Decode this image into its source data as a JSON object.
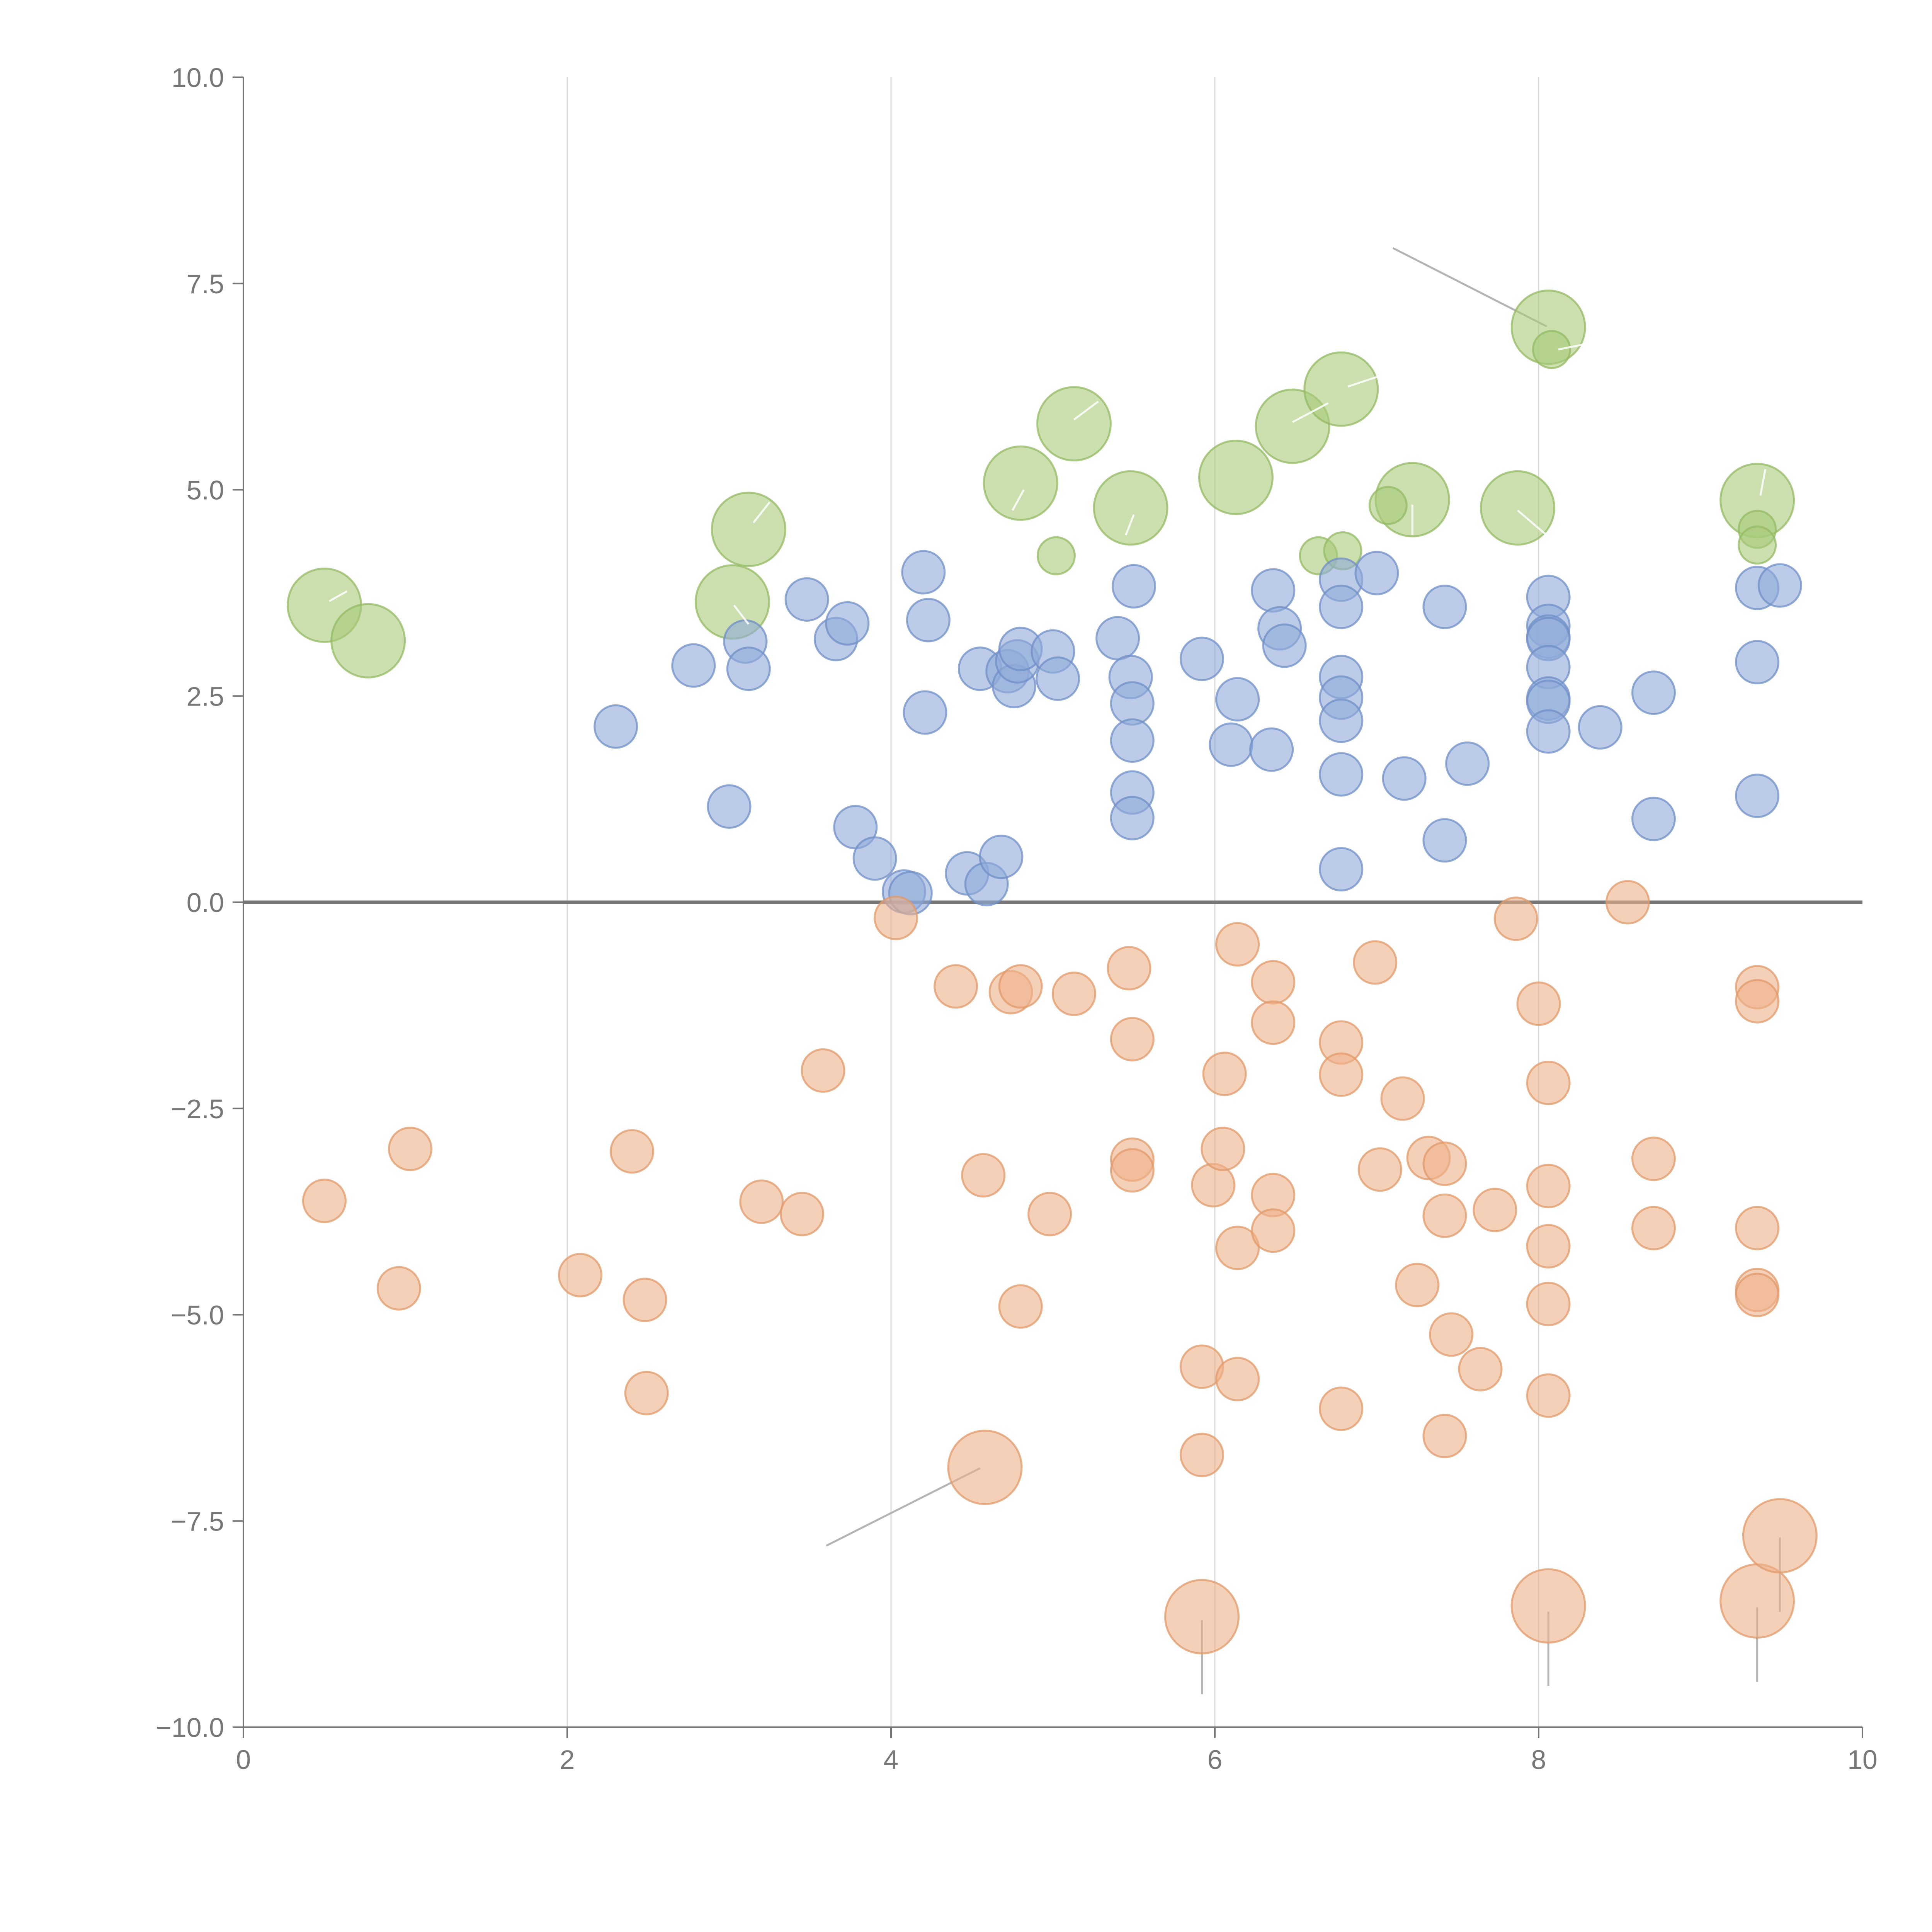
{
  "chart_data": {
    "type": "scatter",
    "title": "",
    "xlabel": "",
    "ylabel": "",
    "xlim": [
      0,
      10
    ],
    "ylim": [
      -10,
      10
    ],
    "grid": "vertical",
    "x_ticks": [
      "0",
      "2",
      "4",
      "6",
      "8",
      "10"
    ],
    "y_ticks": [
      "10.0",
      "7.5",
      "5.0",
      "2.5",
      "0.0",
      "−2.5",
      "−5.0",
      "−7.5",
      "−10.0"
    ],
    "series": [
      {
        "name": "green",
        "color": "#a9c97a",
        "stroke": "#93b962",
        "points": [
          {
            "x": 0.5,
            "y": 3.6,
            "size": "large"
          },
          {
            "x": 0.77,
            "y": 3.17,
            "size": "large"
          },
          {
            "x": 3.02,
            "y": 3.64,
            "size": "large"
          },
          {
            "x": 3.12,
            "y": 4.52,
            "size": "large"
          },
          {
            "x": 4.8,
            "y": 5.08,
            "size": "large"
          },
          {
            "x": 5.13,
            "y": 5.8,
            "size": "large"
          },
          {
            "x": 5.48,
            "y": 4.78,
            "size": "large"
          },
          {
            "x": 6.13,
            "y": 5.15,
            "size": "large"
          },
          {
            "x": 6.48,
            "y": 5.77,
            "size": "large"
          },
          {
            "x": 6.78,
            "y": 6.22,
            "size": "large"
          },
          {
            "x": 7.22,
            "y": 4.88,
            "size": "large"
          },
          {
            "x": 7.87,
            "y": 4.78,
            "size": "large"
          },
          {
            "x": 8.06,
            "y": 6.97,
            "size": "large"
          },
          {
            "x": 9.35,
            "y": 4.87,
            "size": "large"
          },
          {
            "x": 5.02,
            "y": 4.2,
            "size": "small"
          },
          {
            "x": 6.64,
            "y": 4.2,
            "size": "small"
          },
          {
            "x": 6.79,
            "y": 4.26,
            "size": "small"
          },
          {
            "x": 7.07,
            "y": 4.81,
            "size": "small"
          },
          {
            "x": 8.08,
            "y": 6.7,
            "size": "small"
          },
          {
            "x": 9.35,
            "y": 4.52,
            "size": "small"
          },
          {
            "x": 9.35,
            "y": 4.33,
            "size": "small"
          }
        ]
      },
      {
        "name": "blue",
        "color": "#8faad8",
        "stroke": "#6f8fc7",
        "points": [
          {
            "x": 2.3,
            "y": 2.13,
            "size": "medium"
          },
          {
            "x": 2.78,
            "y": 2.87,
            "size": "medium"
          },
          {
            "x": 3.0,
            "y": 1.16,
            "size": "medium"
          },
          {
            "x": 3.1,
            "y": 3.16,
            "size": "medium"
          },
          {
            "x": 3.12,
            "y": 2.83,
            "size": "medium"
          },
          {
            "x": 3.48,
            "y": 3.67,
            "size": "medium"
          },
          {
            "x": 3.66,
            "y": 3.19,
            "size": "medium"
          },
          {
            "x": 3.73,
            "y": 3.38,
            "size": "medium"
          },
          {
            "x": 3.78,
            "y": 0.91,
            "size": "medium"
          },
          {
            "x": 3.9,
            "y": 0.53,
            "size": "medium"
          },
          {
            "x": 4.08,
            "y": 0.13,
            "size": "medium"
          },
          {
            "x": 4.12,
            "y": 0.11,
            "size": "medium"
          },
          {
            "x": 4.2,
            "y": 4.0,
            "size": "medium"
          },
          {
            "x": 4.21,
            "y": 2.3,
            "size": "medium"
          },
          {
            "x": 4.23,
            "y": 3.42,
            "size": "medium"
          },
          {
            "x": 4.47,
            "y": 0.35,
            "size": "medium"
          },
          {
            "x": 4.55,
            "y": 2.83,
            "size": "medium"
          },
          {
            "x": 4.59,
            "y": 0.22,
            "size": "medium"
          },
          {
            "x": 4.68,
            "y": 0.55,
            "size": "medium"
          },
          {
            "x": 4.72,
            "y": 2.8,
            "size": "medium"
          },
          {
            "x": 4.76,
            "y": 2.62,
            "size": "medium"
          },
          {
            "x": 4.78,
            "y": 2.92,
            "size": "medium"
          },
          {
            "x": 4.8,
            "y": 3.07,
            "size": "medium"
          },
          {
            "x": 5.0,
            "y": 3.04,
            "size": "medium"
          },
          {
            "x": 5.03,
            "y": 2.71,
            "size": "medium"
          },
          {
            "x": 5.4,
            "y": 3.2,
            "size": "medium"
          },
          {
            "x": 5.48,
            "y": 2.73,
            "size": "medium"
          },
          {
            "x": 5.49,
            "y": 2.41,
            "size": "medium"
          },
          {
            "x": 5.49,
            "y": 1.96,
            "size": "medium"
          },
          {
            "x": 5.49,
            "y": 1.33,
            "size": "medium"
          },
          {
            "x": 5.49,
            "y": 1.02,
            "size": "medium"
          },
          {
            "x": 5.5,
            "y": 3.83,
            "size": "medium"
          },
          {
            "x": 5.92,
            "y": 2.95,
            "size": "medium"
          },
          {
            "x": 6.1,
            "y": 1.91,
            "size": "medium"
          },
          {
            "x": 6.14,
            "y": 2.46,
            "size": "medium"
          },
          {
            "x": 6.35,
            "y": 1.85,
            "size": "medium"
          },
          {
            "x": 6.36,
            "y": 3.78,
            "size": "medium"
          },
          {
            "x": 6.4,
            "y": 3.32,
            "size": "medium"
          },
          {
            "x": 6.43,
            "y": 3.11,
            "size": "medium"
          },
          {
            "x": 6.78,
            "y": 3.91,
            "size": "medium"
          },
          {
            "x": 6.78,
            "y": 3.58,
            "size": "medium"
          },
          {
            "x": 6.78,
            "y": 2.73,
            "size": "medium"
          },
          {
            "x": 6.78,
            "y": 2.48,
            "size": "medium"
          },
          {
            "x": 6.78,
            "y": 2.2,
            "size": "medium"
          },
          {
            "x": 6.78,
            "y": 1.55,
            "size": "medium"
          },
          {
            "x": 6.78,
            "y": 0.4,
            "size": "medium"
          },
          {
            "x": 7.0,
            "y": 3.99,
            "size": "medium"
          },
          {
            "x": 7.17,
            "y": 1.5,
            "size": "medium"
          },
          {
            "x": 7.42,
            "y": 3.58,
            "size": "medium"
          },
          {
            "x": 7.42,
            "y": 0.75,
            "size": "medium"
          },
          {
            "x": 7.56,
            "y": 1.68,
            "size": "medium"
          },
          {
            "x": 8.06,
            "y": 3.7,
            "size": "medium"
          },
          {
            "x": 8.06,
            "y": 3.35,
            "size": "medium"
          },
          {
            "x": 8.06,
            "y": 3.22,
            "size": "medium"
          },
          {
            "x": 8.06,
            "y": 3.19,
            "size": "medium"
          },
          {
            "x": 8.06,
            "y": 2.85,
            "size": "medium"
          },
          {
            "x": 8.06,
            "y": 2.47,
            "size": "medium"
          },
          {
            "x": 8.06,
            "y": 2.43,
            "size": "medium"
          },
          {
            "x": 8.06,
            "y": 2.07,
            "size": "medium"
          },
          {
            "x": 8.38,
            "y": 2.12,
            "size": "medium"
          },
          {
            "x": 8.71,
            "y": 2.54,
            "size": "medium"
          },
          {
            "x": 8.71,
            "y": 1.01,
            "size": "medium"
          },
          {
            "x": 9.35,
            "y": 3.81,
            "size": "medium"
          },
          {
            "x": 9.35,
            "y": 2.91,
            "size": "medium"
          },
          {
            "x": 9.35,
            "y": 1.29,
            "size": "medium"
          },
          {
            "x": 9.49,
            "y": 3.84,
            "size": "medium"
          }
        ]
      },
      {
        "name": "orange",
        "color": "#eeb088",
        "stroke": "#e09a6a",
        "points": [
          {
            "x": 0.5,
            "y": -3.62,
            "size": "medium"
          },
          {
            "x": 0.96,
            "y": -4.68,
            "size": "medium"
          },
          {
            "x": 1.03,
            "y": -2.99,
            "size": "medium"
          },
          {
            "x": 2.08,
            "y": -4.52,
            "size": "medium"
          },
          {
            "x": 2.4,
            "y": -3.02,
            "size": "medium"
          },
          {
            "x": 2.48,
            "y": -4.82,
            "size": "medium"
          },
          {
            "x": 2.49,
            "y": -5.95,
            "size": "medium"
          },
          {
            "x": 3.2,
            "y": -3.63,
            "size": "medium"
          },
          {
            "x": 3.45,
            "y": -3.78,
            "size": "medium"
          },
          {
            "x": 3.58,
            "y": -2.04,
            "size": "medium"
          },
          {
            "x": 4.03,
            "y": -0.19,
            "size": "medium"
          },
          {
            "x": 4.4,
            "y": -1.02,
            "size": "medium"
          },
          {
            "x": 4.57,
            "y": -3.31,
            "size": "medium"
          },
          {
            "x": 4.58,
            "y": -6.85,
            "size": "large"
          },
          {
            "x": 4.74,
            "y": -1.09,
            "size": "medium"
          },
          {
            "x": 4.8,
            "y": -1.02,
            "size": "medium"
          },
          {
            "x": 4.8,
            "y": -4.9,
            "size": "medium"
          },
          {
            "x": 4.98,
            "y": -3.78,
            "size": "medium"
          },
          {
            "x": 5.13,
            "y": -1.11,
            "size": "medium"
          },
          {
            "x": 5.47,
            "y": -0.8,
            "size": "medium"
          },
          {
            "x": 5.49,
            "y": -1.66,
            "size": "medium"
          },
          {
            "x": 5.49,
            "y": -3.12,
            "size": "medium"
          },
          {
            "x": 5.49,
            "y": -3.25,
            "size": "medium"
          },
          {
            "x": 5.92,
            "y": -5.63,
            "size": "medium"
          },
          {
            "x": 5.92,
            "y": -6.7,
            "size": "medium"
          },
          {
            "x": 5.92,
            "y": -8.66,
            "size": "large"
          },
          {
            "x": 5.99,
            "y": -3.43,
            "size": "medium"
          },
          {
            "x": 6.05,
            "y": -2.99,
            "size": "medium"
          },
          {
            "x": 6.06,
            "y": -2.08,
            "size": "medium"
          },
          {
            "x": 6.14,
            "y": -0.51,
            "size": "medium"
          },
          {
            "x": 6.14,
            "y": -4.19,
            "size": "medium"
          },
          {
            "x": 6.14,
            "y": -5.78,
            "size": "medium"
          },
          {
            "x": 6.36,
            "y": -0.97,
            "size": "medium"
          },
          {
            "x": 6.36,
            "y": -1.46,
            "size": "medium"
          },
          {
            "x": 6.36,
            "y": -3.55,
            "size": "medium"
          },
          {
            "x": 6.36,
            "y": -3.98,
            "size": "medium"
          },
          {
            "x": 6.78,
            "y": -1.7,
            "size": "medium"
          },
          {
            "x": 6.78,
            "y": -2.09,
            "size": "medium"
          },
          {
            "x": 6.78,
            "y": -6.14,
            "size": "medium"
          },
          {
            "x": 6.99,
            "y": -0.73,
            "size": "medium"
          },
          {
            "x": 7.02,
            "y": -3.24,
            "size": "medium"
          },
          {
            "x": 7.16,
            "y": -2.38,
            "size": "medium"
          },
          {
            "x": 7.25,
            "y": -4.64,
            "size": "medium"
          },
          {
            "x": 7.32,
            "y": -3.1,
            "size": "medium"
          },
          {
            "x": 7.42,
            "y": -3.17,
            "size": "medium"
          },
          {
            "x": 7.42,
            "y": -3.8,
            "size": "medium"
          },
          {
            "x": 7.42,
            "y": -6.47,
            "size": "medium"
          },
          {
            "x": 7.46,
            "y": -5.24,
            "size": "medium"
          },
          {
            "x": 7.64,
            "y": -5.66,
            "size": "medium"
          },
          {
            "x": 7.73,
            "y": -3.73,
            "size": "medium"
          },
          {
            "x": 7.86,
            "y": -0.2,
            "size": "medium"
          },
          {
            "x": 8.0,
            "y": -1.23,
            "size": "medium"
          },
          {
            "x": 8.06,
            "y": -2.19,
            "size": "medium"
          },
          {
            "x": 8.06,
            "y": -3.44,
            "size": "medium"
          },
          {
            "x": 8.06,
            "y": -4.17,
            "size": "medium"
          },
          {
            "x": 8.06,
            "y": -4.87,
            "size": "medium"
          },
          {
            "x": 8.06,
            "y": -5.98,
            "size": "medium"
          },
          {
            "x": 8.06,
            "y": -8.53,
            "size": "large"
          },
          {
            "x": 8.55,
            "y": 0.0,
            "size": "medium"
          },
          {
            "x": 8.71,
            "y": -3.11,
            "size": "medium"
          },
          {
            "x": 8.71,
            "y": -3.95,
            "size": "medium"
          },
          {
            "x": 9.35,
            "y": -1.03,
            "size": "medium"
          },
          {
            "x": 9.35,
            "y": -1.2,
            "size": "medium"
          },
          {
            "x": 9.35,
            "y": -3.95,
            "size": "medium"
          },
          {
            "x": 9.35,
            "y": -4.7,
            "size": "medium"
          },
          {
            "x": 9.35,
            "y": -4.76,
            "size": "medium"
          },
          {
            "x": 9.35,
            "y": -8.47,
            "size": "large"
          },
          {
            "x": 9.49,
            "y": -7.68,
            "size": "large"
          }
        ]
      }
    ],
    "leader_lines": [
      {
        "x1": 7.1,
        "y1": 7.93,
        "x2": 8.05,
        "y2": 6.98,
        "tone": "dark"
      },
      {
        "x1": 4.55,
        "y1": -6.86,
        "x2": 3.6,
        "y2": -7.8,
        "tone": "dark"
      },
      {
        "x1": 5.92,
        "y1": -8.7,
        "x2": 5.92,
        "y2": -9.6,
        "tone": "dark"
      },
      {
        "x1": 8.06,
        "y1": -8.6,
        "x2": 8.06,
        "y2": -9.5,
        "tone": "dark"
      },
      {
        "x1": 9.35,
        "y1": -8.55,
        "x2": 9.35,
        "y2": -9.45,
        "tone": "dark"
      },
      {
        "x1": 9.49,
        "y1": -7.7,
        "x2": 9.49,
        "y2": -8.6,
        "tone": "dark"
      },
      {
        "x1": 0.53,
        "y1": 3.65,
        "x2": 0.64,
        "y2": 3.77,
        "tone": "light"
      },
      {
        "x1": 3.03,
        "y1": 3.6,
        "x2": 3.12,
        "y2": 3.37,
        "tone": "light"
      },
      {
        "x1": 3.15,
        "y1": 4.6,
        "x2": 3.25,
        "y2": 4.85,
        "tone": "light"
      },
      {
        "x1": 4.75,
        "y1": 4.75,
        "x2": 4.82,
        "y2": 5.0,
        "tone": "light"
      },
      {
        "x1": 5.13,
        "y1": 5.85,
        "x2": 5.28,
        "y2": 6.07,
        "tone": "light"
      },
      {
        "x1": 5.45,
        "y1": 4.45,
        "x2": 5.5,
        "y2": 4.7,
        "tone": "light"
      },
      {
        "x1": 6.48,
        "y1": 5.82,
        "x2": 6.7,
        "y2": 6.05,
        "tone": "light"
      },
      {
        "x1": 6.82,
        "y1": 6.25,
        "x2": 7.02,
        "y2": 6.38,
        "tone": "light"
      },
      {
        "x1": 7.22,
        "y1": 4.45,
        "x2": 7.22,
        "y2": 4.82,
        "tone": "light"
      },
      {
        "x1": 7.87,
        "y1": 4.75,
        "x2": 8.05,
        "y2": 4.45,
        "tone": "light"
      },
      {
        "x1": 8.12,
        "y1": 6.7,
        "x2": 8.3,
        "y2": 6.77,
        "tone": "light"
      },
      {
        "x1": 9.37,
        "y1": 4.93,
        "x2": 9.4,
        "y2": 5.25,
        "tone": "light"
      }
    ]
  }
}
